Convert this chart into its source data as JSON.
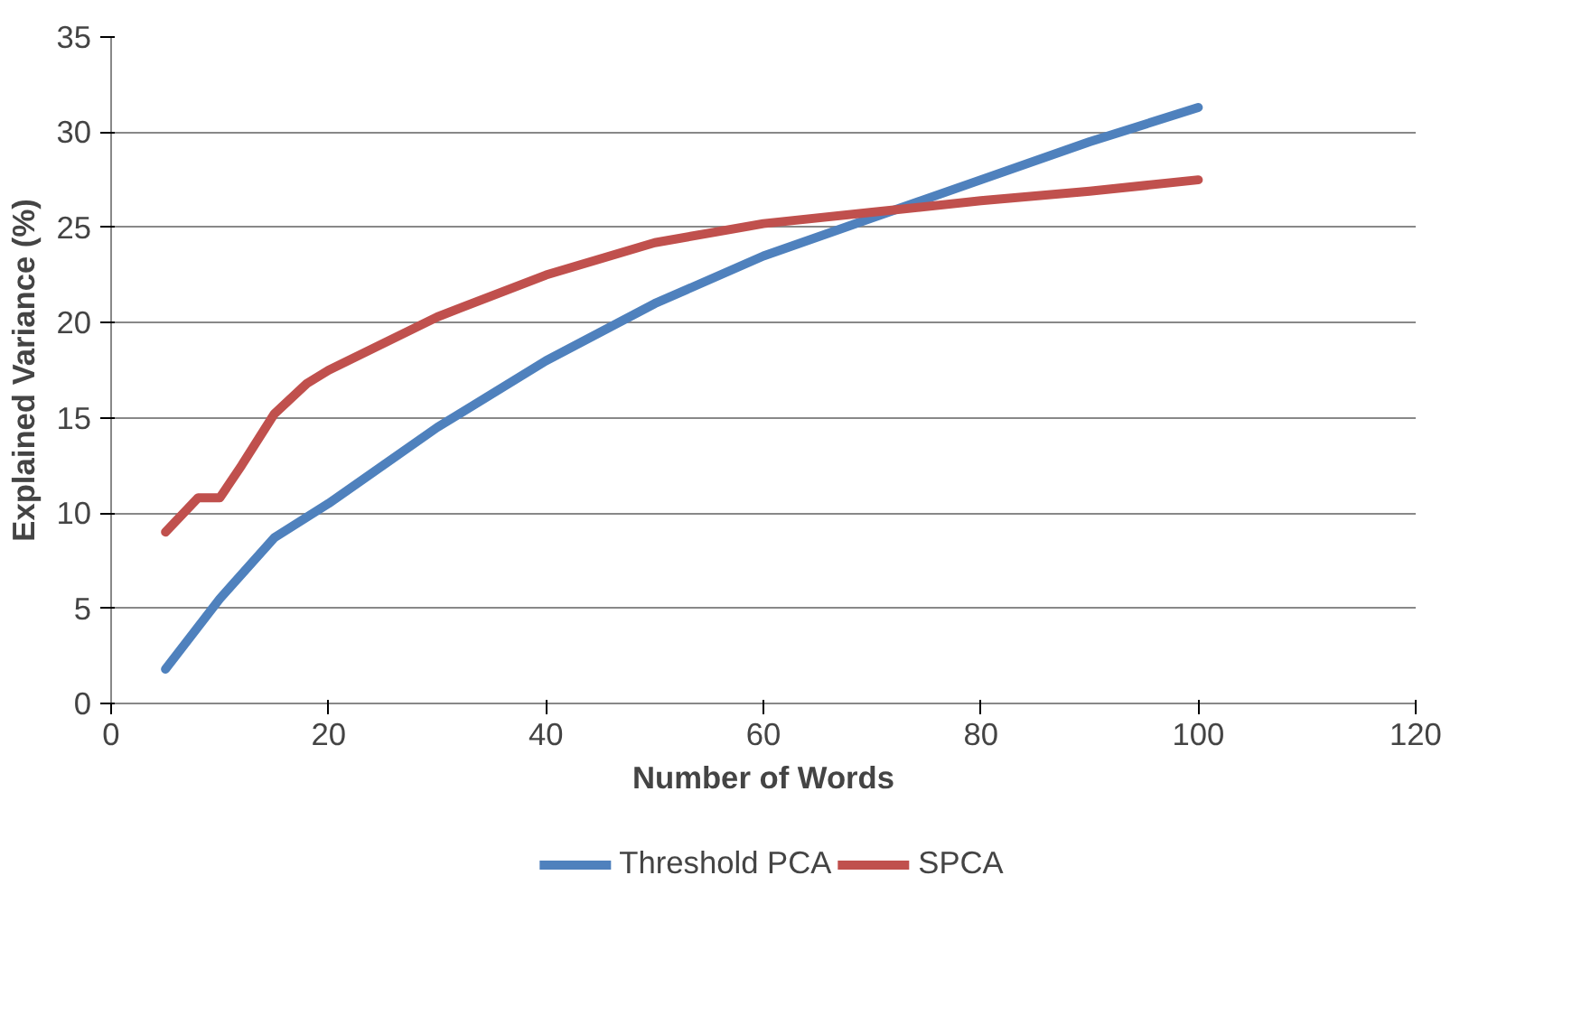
{
  "chart_data": {
    "type": "line",
    "xlabel": "Number of Words",
    "ylabel": "Explained Variance (%)",
    "xlim": [
      0,
      120
    ],
    "xticks": [
      0,
      20,
      40,
      60,
      80,
      100,
      120
    ],
    "ylim": [
      0,
      35
    ],
    "yticks": [
      0,
      5,
      10,
      15,
      20,
      25,
      30,
      35
    ],
    "grid": "y",
    "legend": "bottom",
    "line_style": "solid",
    "series": [
      {
        "name": "Threshold PCA",
        "color": "#4f81bd",
        "x": [
          5,
          10,
          15,
          20,
          30,
          40,
          50,
          60,
          70,
          80,
          90,
          100
        ],
        "values": [
          1.8,
          5.5,
          8.7,
          10.5,
          14.5,
          18,
          21,
          23.5,
          25.5,
          27.5,
          29.5,
          31.3
        ]
      },
      {
        "name": "SPCA",
        "color": "#c0504d",
        "x": [
          5,
          8,
          10,
          12,
          15,
          18,
          20,
          30,
          40,
          50,
          60,
          70,
          80,
          90,
          100
        ],
        "values": [
          9,
          10.8,
          10.8,
          12.5,
          15.2,
          16.8,
          17.5,
          20.3,
          22.5,
          24.2,
          25.2,
          25.8,
          26.4,
          26.9,
          27.5
        ]
      }
    ]
  }
}
